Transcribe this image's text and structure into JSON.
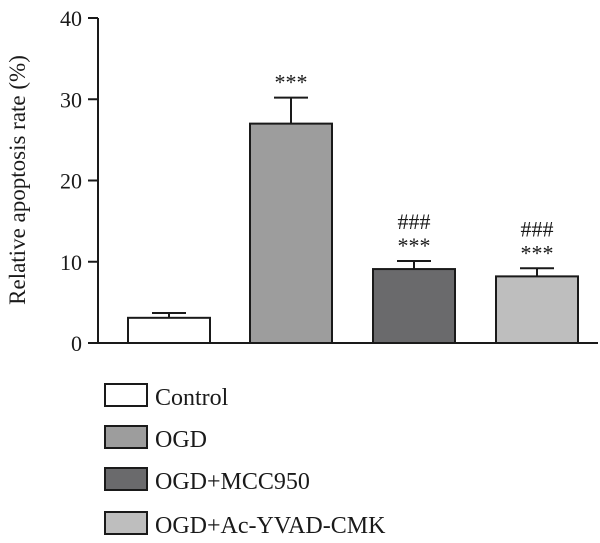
{
  "chart_data": {
    "type": "bar",
    "title": "",
    "ylabel": "Relative apoptosis rate (%)",
    "xlabel": "",
    "ylim": [
      0,
      40
    ],
    "yticks": [
      "0",
      "10",
      "20",
      "30",
      "40"
    ],
    "grid": false,
    "legend_position": "bottom",
    "categories": [
      "Control",
      "OGD",
      "OGD+MCC950",
      "OGD+Ac-YVAD-CMK"
    ],
    "values": [
      3.1,
      27.0,
      9.1,
      8.2
    ],
    "errors": [
      0.6,
      3.2,
      1.0,
      1.0
    ],
    "colors": [
      "#ffffff",
      "#9d9d9d",
      "#6a6a6c",
      "#bebebe"
    ],
    "annotations": [
      [],
      [
        "***"
      ],
      [
        "###",
        "***"
      ],
      [
        "###",
        "***"
      ]
    ]
  }
}
